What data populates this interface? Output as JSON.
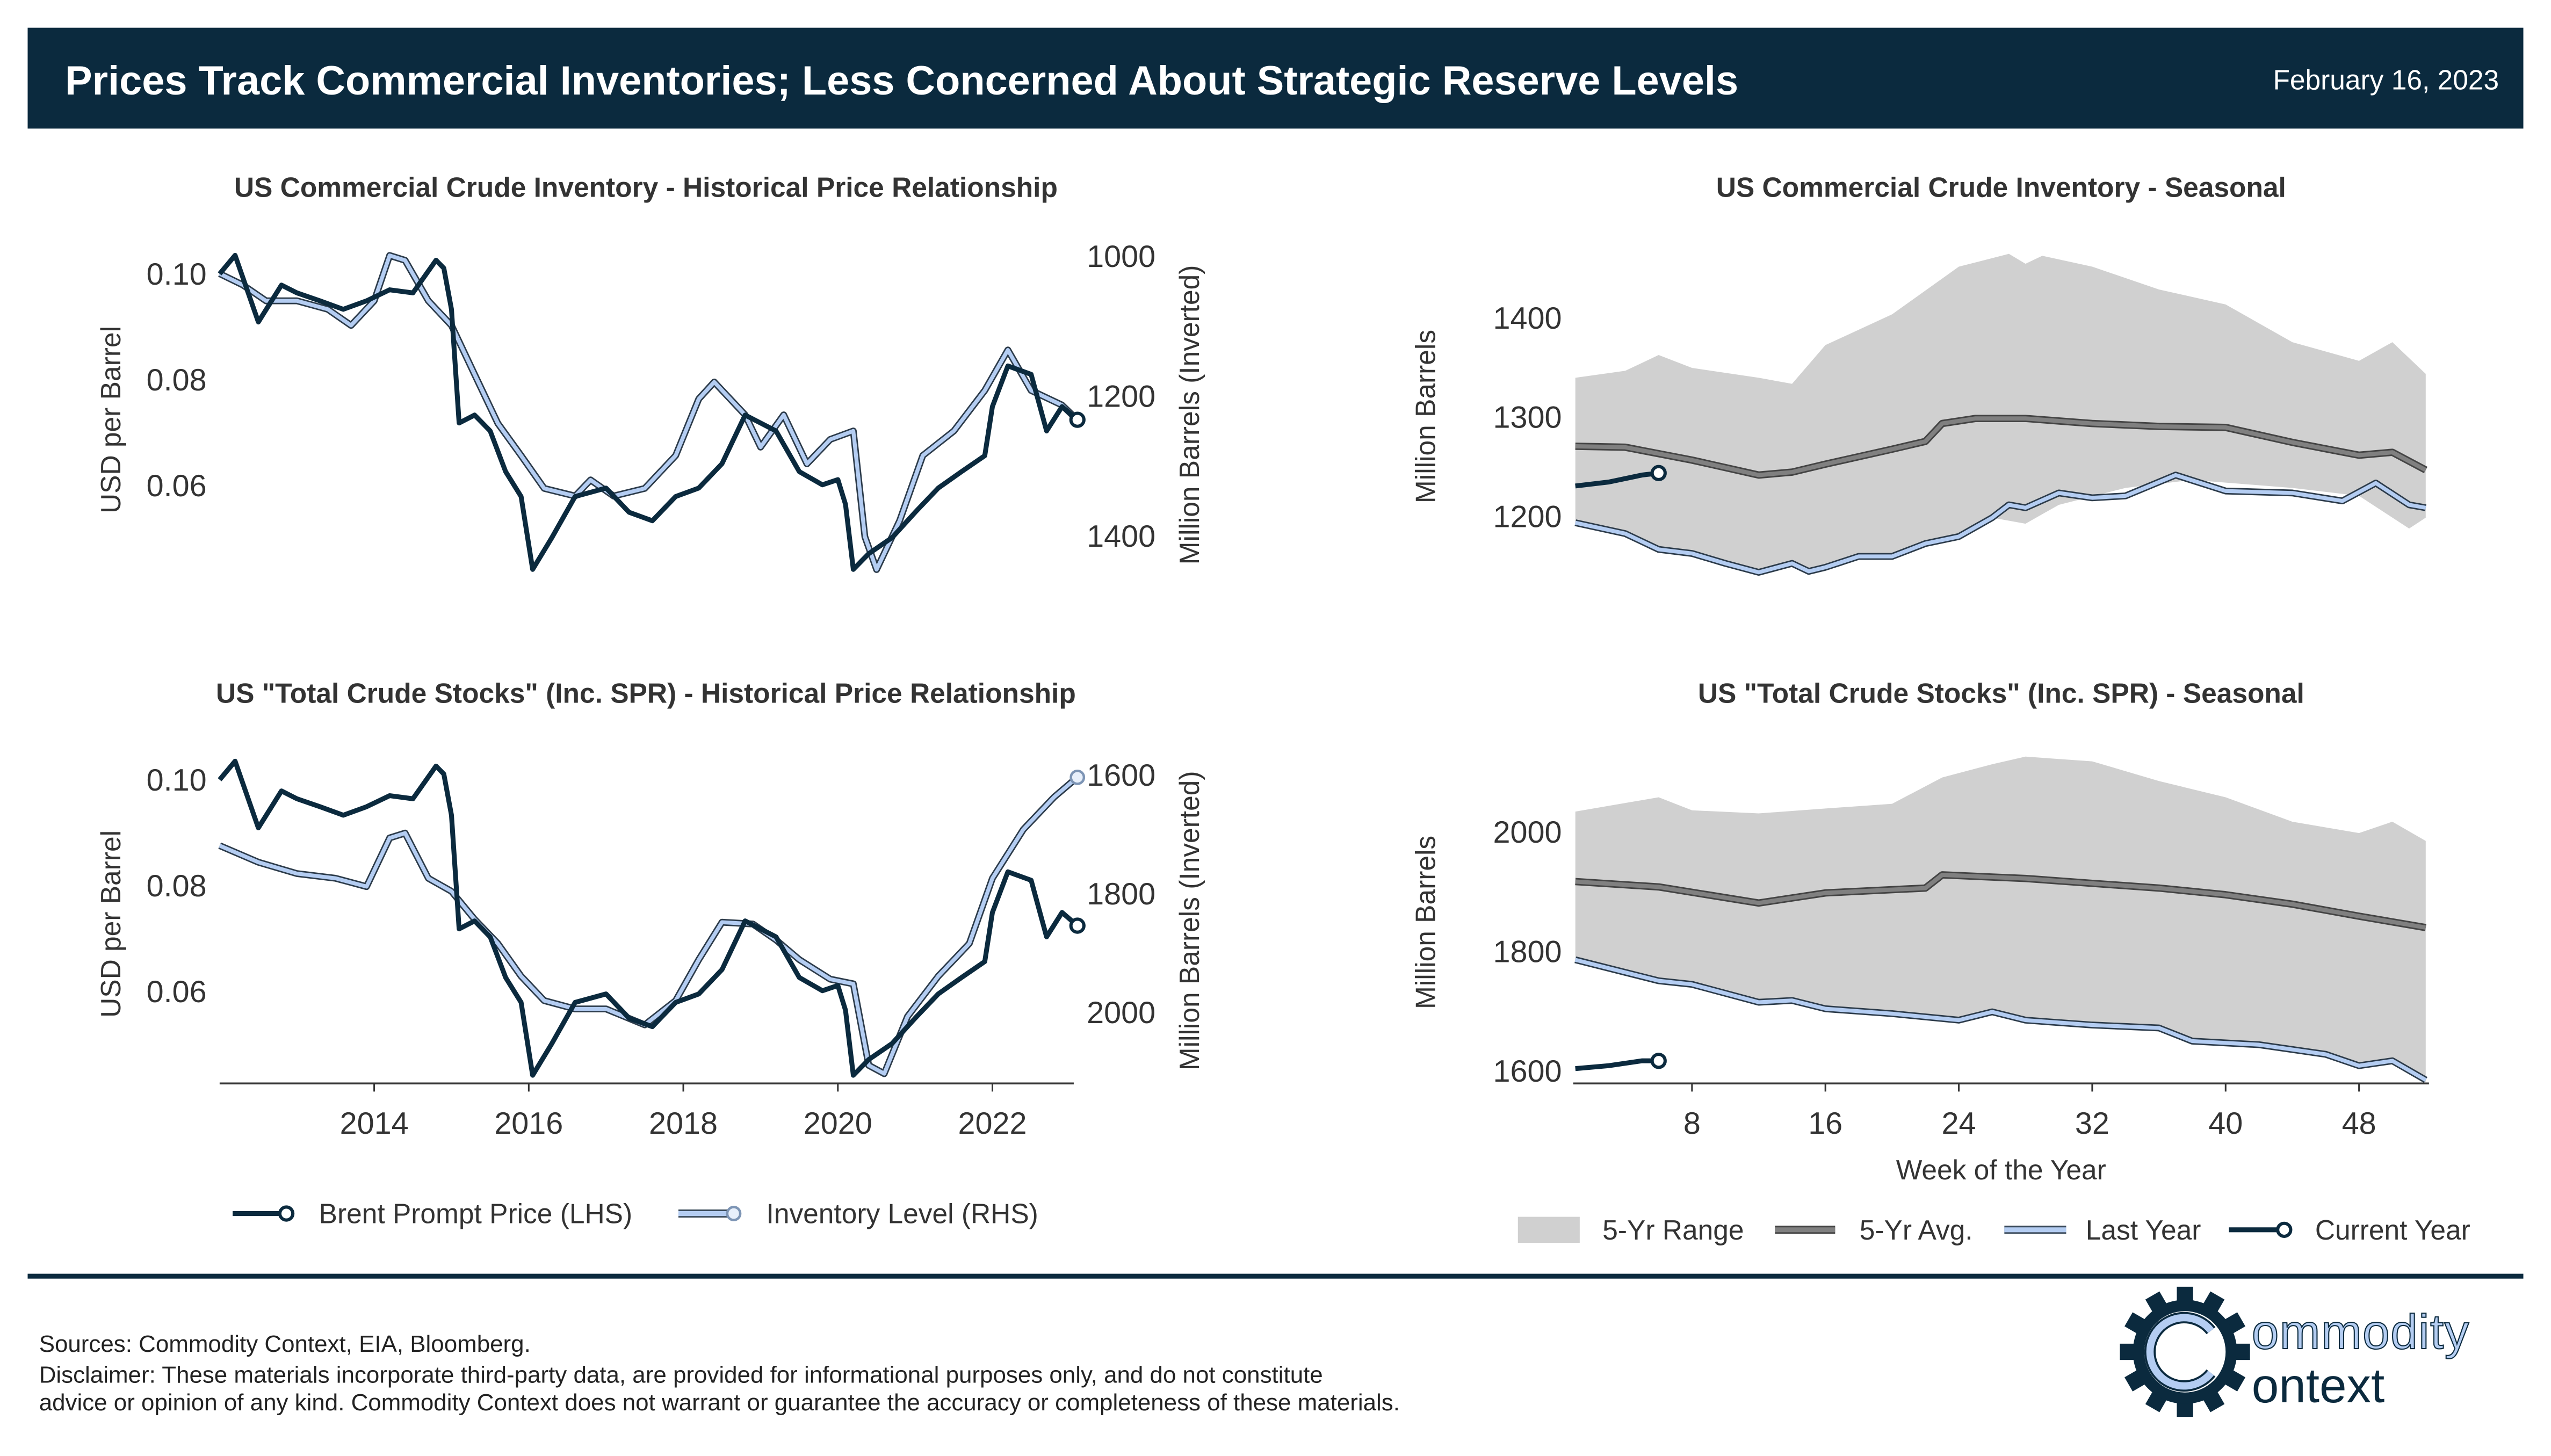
{
  "header": {
    "title": "Prices Track Commercial Inventories; Less Concerned About Strategic Reserve Levels",
    "date": "February 16, 2023"
  },
  "colors": {
    "navy": "#0b2a3e",
    "light_blue": "#b4cdf2",
    "range_gray": "#d0d0d0",
    "avg_gray": "#808080"
  },
  "legend_left": {
    "price": "Brent Prompt Price (LHS)",
    "inventory": "Inventory Level (RHS)"
  },
  "legend_right": {
    "range": "5-Yr Range",
    "avg": "5-Yr Avg.",
    "last": "Last Year",
    "current": "Current Year"
  },
  "footer": {
    "sources": "Sources: Commodity Context, EIA, Bloomberg.",
    "disclaimer1": "Disclaimer: These materials incorporate third-party data, are provided for informational purposes only, and do not constitute",
    "disclaimer2": "advice or opinion of any kind. Commodity Context does not warrant or guarantee the accuracy or completeness of these materials.",
    "logo_text": [
      "Commodity",
      "Context"
    ]
  },
  "chart_data": [
    {
      "type": "line",
      "title": "US Commercial Crude Inventory - Historical Price Relationship",
      "ylabel": "USD per Barrel",
      "ylabel_right": "Million Barrels (Inverted)",
      "yticks": [
        "0.10",
        "0.08",
        "0.06"
      ],
      "yticks_right": [
        "1000",
        "1200",
        "1400"
      ],
      "xticks": [],
      "right_axis_inverted": true,
      "series": [
        {
          "name": "Brent Prompt Price (LHS)",
          "axis": "left",
          "x": [
            2012.0,
            2012.2,
            2012.5,
            2012.8,
            2013.0,
            2013.3,
            2013.6,
            2013.9,
            2014.2,
            2014.5,
            2014.8,
            2014.9,
            2015.0,
            2015.1,
            2015.3,
            2015.5,
            2015.7,
            2015.9,
            2016.05,
            2016.3,
            2016.6,
            2017.0,
            2017.3,
            2017.6,
            2017.9,
            2018.2,
            2018.5,
            2018.8,
            2019.0,
            2019.2,
            2019.5,
            2019.8,
            2020.0,
            2020.1,
            2020.2,
            2020.4,
            2020.7,
            2021.0,
            2021.3,
            2021.6,
            2021.9,
            2022.0,
            2022.2,
            2022.5,
            2022.7,
            2022.9,
            2023.1
          ],
          "y": [
            0.0999,
            0.1034,
            0.0908,
            0.0978,
            0.0963,
            0.0948,
            0.0932,
            0.0948,
            0.0969,
            0.0963,
            0.1025,
            0.101,
            0.0932,
            0.0717,
            0.0732,
            0.0702,
            0.0625,
            0.0578,
            0.044,
            0.05,
            0.0578,
            0.0594,
            0.0548,
            0.0532,
            0.0578,
            0.0594,
            0.064,
            0.0732,
            0.0717,
            0.0702,
            0.0625,
            0.06,
            0.061,
            0.0563,
            0.044,
            0.047,
            0.05,
            0.0548,
            0.0594,
            0.0625,
            0.0655,
            0.0748,
            0.0825,
            0.0809,
            0.0702,
            0.0748,
            0.0723
          ]
        },
        {
          "name": "Inventory Level (RHS)",
          "axis": "right",
          "x": [
            2012.0,
            2012.3,
            2012.6,
            2013.0,
            2013.4,
            2013.7,
            2014.0,
            2014.2,
            2014.4,
            2014.7,
            2015.0,
            2015.3,
            2015.6,
            2015.9,
            2016.2,
            2016.6,
            2016.8,
            2017.1,
            2017.5,
            2017.9,
            2018.2,
            2018.4,
            2018.8,
            2019.0,
            2019.3,
            2019.6,
            2019.9,
            2020.2,
            2020.35,
            2020.5,
            2020.8,
            2021.1,
            2021.5,
            2021.9,
            2022.2,
            2022.5,
            2022.9,
            2023.1
          ],
          "y": [
            1026,
            1042,
            1065,
            1065,
            1077,
            1100,
            1065,
            1000,
            1007,
            1065,
            1100,
            1170,
            1240,
            1286,
            1333,
            1344,
            1321,
            1344,
            1333,
            1286,
            1205,
            1181,
            1228,
            1274,
            1228,
            1298,
            1263,
            1251,
            1402,
            1449,
            1379,
            1286,
            1251,
            1193,
            1135,
            1193,
            1214,
            1235
          ]
        }
      ]
    },
    {
      "type": "area",
      "title": "US Commercial Crude Inventory - Seasonal",
      "ylabel": "Million Barrels",
      "yticks": [
        "1400",
        "1300",
        "1200"
      ],
      "series": [
        {
          "name": "5-Yr Range",
          "x_max": [
            1,
            4,
            6,
            8,
            12,
            14,
            16,
            20,
            24,
            27,
            28,
            29,
            32,
            36,
            40,
            44,
            48,
            50,
            52
          ],
          "max": [
            1339,
            1346,
            1362,
            1349,
            1339,
            1333,
            1372,
            1403,
            1451,
            1464,
            1454,
            1462,
            1451,
            1428,
            1413,
            1375,
            1356,
            1375,
            1343
          ],
          "x_min": [
            1,
            4,
            6,
            8,
            10,
            12,
            14,
            15,
            16,
            18,
            20,
            22,
            24,
            26,
            28,
            30,
            34,
            38,
            44,
            48,
            51,
            52
          ],
          "min": [
            1192,
            1182,
            1166,
            1162,
            1152,
            1143,
            1152,
            1144,
            1148,
            1159,
            1159,
            1172,
            1179,
            1198,
            1192,
            1211,
            1228,
            1236,
            1228,
            1220,
            1187,
            1198
          ]
        },
        {
          "name": "5-Yr Avg.",
          "x": [
            1,
            4,
            8,
            12,
            14,
            16,
            20,
            22,
            23,
            25,
            28,
            32,
            36,
            40,
            44,
            48,
            50,
            52
          ],
          "y": [
            1270,
            1269,
            1256,
            1241,
            1244,
            1252,
            1267,
            1275,
            1293,
            1298,
            1298,
            1293,
            1290,
            1289,
            1274,
            1261,
            1264,
            1246
          ]
        },
        {
          "name": "Last Year",
          "x": [
            1,
            4,
            6,
            8,
            10,
            12,
            14,
            15,
            16,
            18,
            20,
            22,
            24,
            26,
            27,
            28,
            30,
            32,
            34,
            37,
            40,
            44,
            47,
            49,
            51,
            52
          ],
          "y": [
            1193,
            1182,
            1166,
            1162,
            1152,
            1143,
            1152,
            1144,
            1148,
            1159,
            1159,
            1172,
            1179,
            1198,
            1211,
            1208,
            1223,
            1218,
            1220,
            1241,
            1225,
            1223,
            1215,
            1233,
            1211,
            1208
          ]
        },
        {
          "name": "Current Year",
          "x": [
            1,
            3,
            5,
            6
          ],
          "y": [
            1230,
            1234,
            1241,
            1243
          ]
        }
      ]
    },
    {
      "type": "line",
      "title": "US \"Total Crude Stocks\" (Inc. SPR) - Historical Price Relationship",
      "ylabel": "USD per Barrel",
      "ylabel_right": "Million Barrels (Inverted)",
      "yticks": [
        "0.10",
        "0.08",
        "0.06"
      ],
      "yticks_right": [
        "1600",
        "1800",
        "2000"
      ],
      "xticks": [
        "2014",
        "2016",
        "2018",
        "2020",
        "2022"
      ],
      "right_axis_inverted": true,
      "series": [
        {
          "name": "Brent Prompt Price (LHS)",
          "axis": "left",
          "same_as_chart": 0
        },
        {
          "name": "Inventory Level (RHS)",
          "axis": "right",
          "x": [
            2012.0,
            2012.5,
            2013.0,
            2013.5,
            2013.9,
            2014.2,
            2014.4,
            2014.7,
            2015.0,
            2015.3,
            2015.6,
            2015.9,
            2016.2,
            2016.6,
            2017.0,
            2017.5,
            2017.9,
            2018.2,
            2018.5,
            2018.9,
            2019.2,
            2019.5,
            2019.9,
            2020.2,
            2020.4,
            2020.6,
            2020.9,
            2021.3,
            2021.7,
            2022.0,
            2022.4,
            2022.8,
            2023.1
          ],
          "y": [
            1720,
            1748,
            1767,
            1775,
            1789,
            1707,
            1699,
            1775,
            1797,
            1844,
            1885,
            1940,
            1981,
            1995,
            1995,
            2022,
            1981,
            1912,
            1849,
            1852,
            1879,
            1912,
            1945,
            1953,
            2090,
            2104,
            2008,
            1940,
            1885,
            1775,
            1693,
            1638,
            1605
          ]
        }
      ]
    },
    {
      "type": "area",
      "title": "US \"Total Crude Stocks\" (Inc. SPR) - Seasonal",
      "ylabel": "Million Barrels",
      "xlabel": "Week of the Year",
      "yticks": [
        "2000",
        "1800",
        "1600"
      ],
      "xticks": [
        "8",
        "16",
        "24",
        "32",
        "40",
        "48"
      ],
      "series": [
        {
          "name": "5-Yr Range",
          "x_max": [
            1,
            6,
            8,
            12,
            16,
            20,
            23,
            26,
            28,
            32,
            36,
            40,
            44,
            48,
            50,
            52
          ],
          "max": [
            2033,
            2057,
            2035,
            2030,
            2038,
            2046,
            2090,
            2112,
            2125,
            2117,
            2084,
            2057,
            2016,
            1997,
            2016,
            1984
          ],
          "x_min": [
            1,
            6,
            8,
            12,
            14,
            16,
            20,
            24,
            26,
            28,
            32,
            36,
            38,
            42,
            46,
            48,
            50,
            52
          ],
          "min": [
            1785,
            1750,
            1744,
            1714,
            1717,
            1703,
            1695,
            1684,
            1698,
            1684,
            1676,
            1671,
            1649,
            1643,
            1627,
            1606,
            1610,
            1581
          ]
        },
        {
          "name": "5-Yr Avg.",
          "x": [
            1,
            6,
            12,
            16,
            22,
            23,
            28,
            32,
            36,
            40,
            44,
            48,
            52
          ],
          "y": [
            1916,
            1907,
            1880,
            1897,
            1905,
            1927,
            1921,
            1913,
            1905,
            1894,
            1878,
            1858,
            1839
          ]
        },
        {
          "name": "Last Year",
          "x": [
            1,
            6,
            8,
            12,
            14,
            16,
            20,
            24,
            26,
            28,
            32,
            36,
            38,
            42,
            46,
            48,
            50,
            52
          ],
          "y": [
            1785,
            1750,
            1744,
            1714,
            1717,
            1703,
            1695,
            1684,
            1698,
            1684,
            1676,
            1671,
            1649,
            1643,
            1627,
            1608,
            1616,
            1584
          ]
        },
        {
          "name": "Current Year",
          "x": [
            1,
            3,
            5,
            6
          ],
          "y": [
            1603,
            1608,
            1616,
            1616
          ]
        }
      ]
    }
  ]
}
